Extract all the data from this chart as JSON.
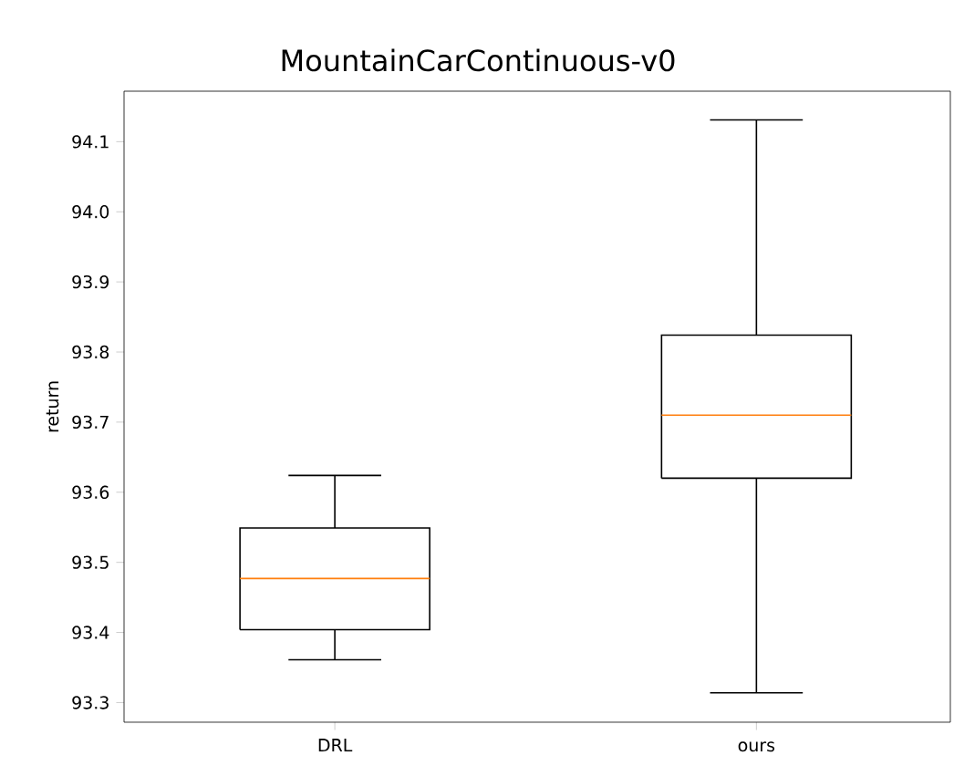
{
  "chart_data": {
    "type": "box",
    "title": "MountainCarContinuous-v0",
    "ylabel": "return",
    "categories": [
      "DRL",
      "ours"
    ],
    "boxes": [
      {
        "low": 93.361,
        "q1": 93.404,
        "median": 93.477,
        "q3": 93.549,
        "high": 93.624
      },
      {
        "low": 93.314,
        "q1": 93.62,
        "median": 93.71,
        "q3": 93.824,
        "high": 94.131
      }
    ],
    "ylim": [
      93.272,
      94.172
    ],
    "yticks": [
      93.3,
      93.4,
      93.5,
      93.6,
      93.7,
      93.8,
      93.9,
      {
        "value": 94.0,
        "label": "94.0"
      },
      94.1
    ]
  }
}
